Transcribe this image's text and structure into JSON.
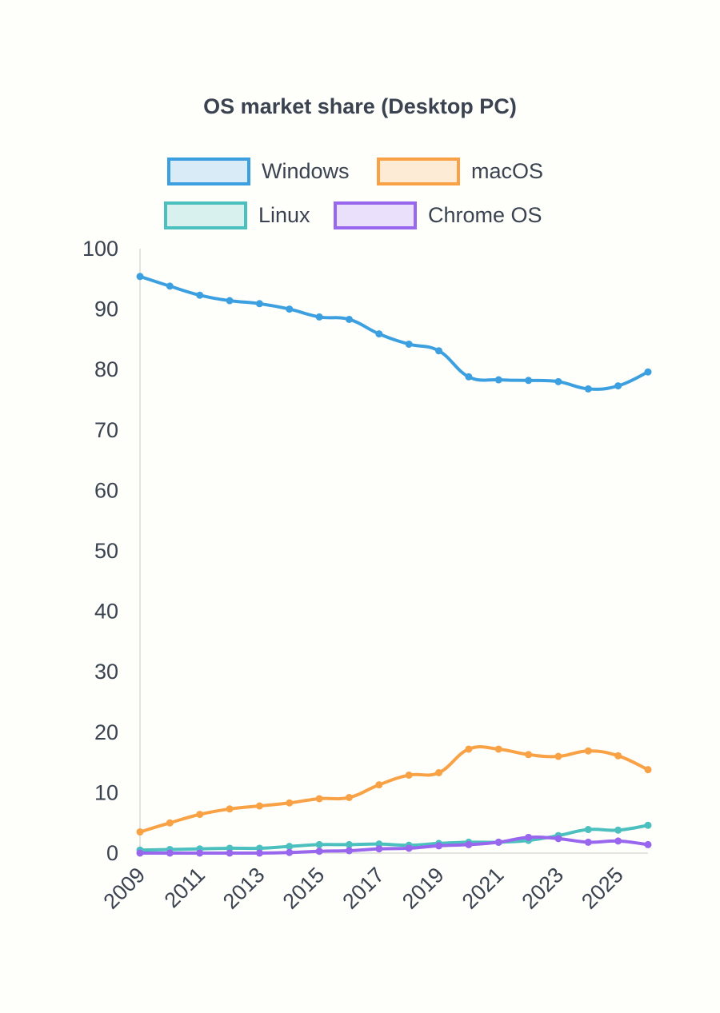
{
  "chart_data": {
    "type": "line",
    "title": "OS market share (Desktop PC)",
    "xlabel": "",
    "ylabel": "",
    "x": [
      2009,
      2010,
      2011,
      2012,
      2013,
      2014,
      2015,
      2016,
      2017,
      2018,
      2019,
      2020,
      2021,
      2022,
      2023,
      2024,
      2025,
      2026
    ],
    "x_tick_labels": [
      "2009",
      "2011",
      "2013",
      "2015",
      "2017",
      "2019",
      "2021",
      "2023",
      "2025"
    ],
    "y_tick_labels": [
      "0",
      "10",
      "20",
      "30",
      "40",
      "50",
      "60",
      "70",
      "80",
      "90",
      "100"
    ],
    "ylim": [
      0,
      100
    ],
    "grid": false,
    "legend_position": "top",
    "series": [
      {
        "name": "Windows",
        "color": "#3ca0e0",
        "fill": "#d9ebf7",
        "values": [
          95.4,
          93.8,
          92.3,
          91.4,
          90.9,
          90.0,
          88.7,
          88.3,
          85.9,
          84.2,
          83.1,
          78.8,
          78.3,
          78.2,
          78.0,
          76.8,
          77.3,
          79.6
        ]
      },
      {
        "name": "macOS",
        "color": "#f8a145",
        "fill": "#fdebd6",
        "values": [
          3.5,
          5.0,
          6.4,
          7.3,
          7.8,
          8.3,
          9.0,
          9.2,
          11.3,
          12.9,
          13.3,
          17.2,
          17.2,
          16.3,
          16.0,
          16.9,
          16.1,
          13.8
        ]
      },
      {
        "name": "Linux",
        "color": "#4cc0bf",
        "fill": "#d8f1ee",
        "values": [
          0.5,
          0.6,
          0.7,
          0.8,
          0.8,
          1.1,
          1.4,
          1.4,
          1.5,
          1.3,
          1.6,
          1.8,
          1.8,
          2.1,
          2.9,
          3.9,
          3.8,
          4.6
        ]
      },
      {
        "name": "Chrome OS",
        "color": "#9966ee",
        "fill": "#ebe0fb",
        "values": [
          0.0,
          0.0,
          0.0,
          0.0,
          0.0,
          0.1,
          0.3,
          0.4,
          0.7,
          0.8,
          1.2,
          1.4,
          1.8,
          2.6,
          2.4,
          1.8,
          2.0,
          1.4
        ]
      }
    ]
  }
}
